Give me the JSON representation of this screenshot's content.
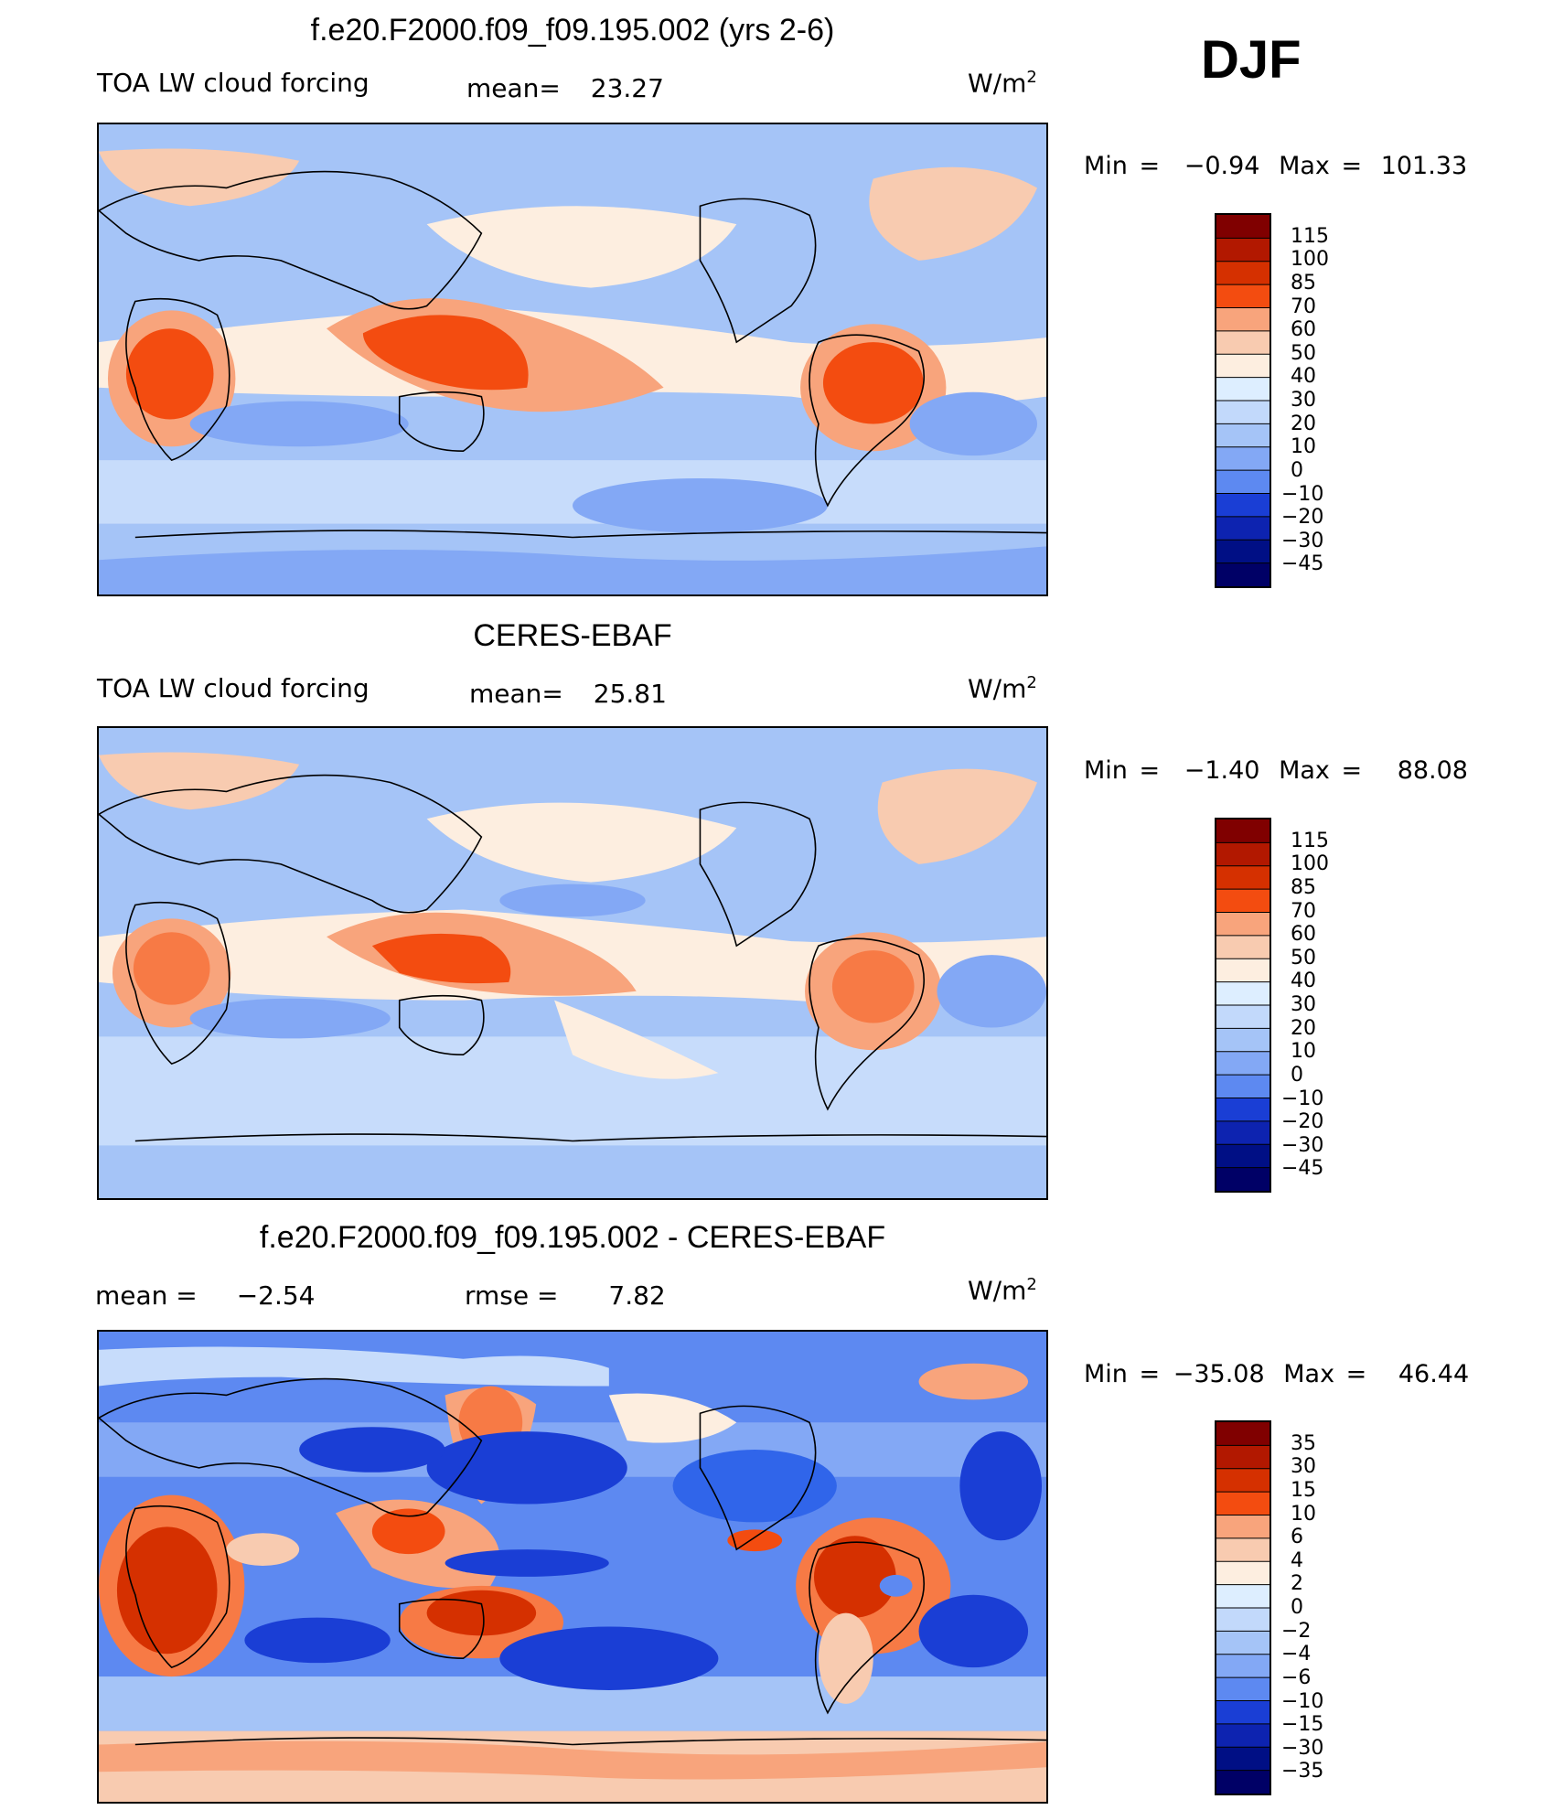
{
  "season": "DJF",
  "unit": "W/m",
  "unit_sup": "2",
  "panels": [
    {
      "title": "f.e20.F2000.f09_f09.195.002 (yrs 2-6)",
      "left_label": "TOA LW cloud forcing",
      "stat1_label": "mean=",
      "stat1_value": "23.27",
      "stat2_label": "",
      "stat2_value": "",
      "min_label": "Min =",
      "min_value": "−0.94",
      "max_label": "Max =",
      "max_value": "101.33",
      "legend_ticks": [
        "115",
        "100",
        "85",
        "70",
        "60",
        "50",
        "40",
        "30",
        "20",
        "10",
        "0",
        "−10",
        "−20",
        "−30",
        "−45"
      ]
    },
    {
      "title": "CERES-EBAF",
      "left_label": "TOA LW cloud forcing",
      "stat1_label": "mean=",
      "stat1_value": "25.81",
      "stat2_label": "",
      "stat2_value": "",
      "min_label": "Min =",
      "min_value": "−1.40",
      "max_label": "Max =",
      "max_value": "88.08",
      "legend_ticks": [
        "115",
        "100",
        "85",
        "70",
        "60",
        "50",
        "40",
        "30",
        "20",
        "10",
        "0",
        "−10",
        "−20",
        "−30",
        "−45"
      ]
    },
    {
      "title": "f.e20.F2000.f09_f09.195.002 - CERES-EBAF",
      "left_label": "",
      "stat1_label": "mean =",
      "stat1_value": "−2.54",
      "stat2_label": "rmse =",
      "stat2_value": "7.82",
      "min_label": "Min =",
      "min_value": "−35.08",
      "max_label": "Max =",
      "max_value": "46.44",
      "legend_ticks": [
        "35",
        "30",
        "15",
        "10",
        "6",
        "4",
        "2",
        "0",
        "−2",
        "−4",
        "−6",
        "−10",
        "−15",
        "−30",
        "−35"
      ]
    }
  ],
  "colors": {
    "scale": [
      "#800000",
      "#b21800",
      "#d53000",
      "#f34c10",
      "#f77a45",
      "#f8a47c",
      "#f8cbb0",
      "#fdeee0",
      "#ddeeff",
      "#c2d9fb",
      "#a5c4f7",
      "#83a8f5",
      "#5d89f1",
      "#3065ea",
      "#1a3ed5",
      "#0d23b0",
      "#000f85",
      "#000066"
    ],
    "ocean_base": "#c7dcfb",
    "coast": "#000000"
  }
}
